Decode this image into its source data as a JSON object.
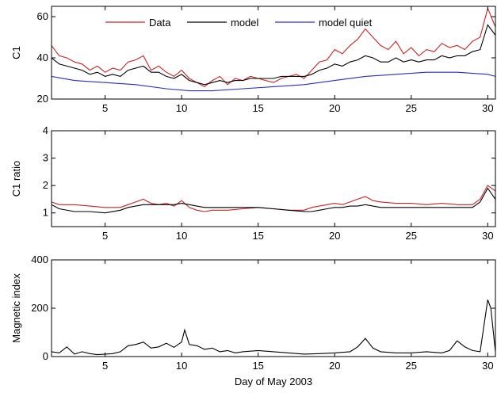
{
  "chart_data": [
    {
      "type": "line",
      "ylabel": "C1",
      "xlim": [
        1.5,
        30.5
      ],
      "ylim": [
        20,
        65
      ],
      "xticks": [
        5,
        10,
        15,
        20,
        25,
        30
      ],
      "yticks": [
        20,
        40,
        60
      ],
      "legend": {
        "position": "top",
        "entries": [
          "Data",
          "model",
          "model quiet"
        ]
      },
      "series": [
        {
          "name": "Data",
          "color": "#cc2222",
          "x": [
            1.5,
            2,
            2.5,
            3,
            3.5,
            4,
            4.5,
            5,
            5.5,
            6,
            6.5,
            7,
            7.5,
            8,
            8.5,
            9,
            9.5,
            10,
            10.5,
            11,
            11.5,
            12,
            12.5,
            13,
            13.5,
            14,
            14.5,
            15,
            15.5,
            16,
            16.5,
            17,
            17.5,
            18,
            18.5,
            19,
            19.5,
            20,
            20.5,
            21,
            21.5,
            22,
            22.5,
            23,
            23.5,
            24,
            24.5,
            25,
            25.5,
            26,
            26.5,
            27,
            27.5,
            28,
            28.5,
            29,
            29.5,
            30,
            30.5
          ],
          "y": [
            46,
            41,
            40,
            38,
            37,
            34,
            36,
            33,
            35,
            34,
            38,
            39,
            41,
            34,
            36,
            33,
            31,
            34,
            30,
            28,
            26,
            29,
            31,
            27,
            30,
            29,
            31,
            30,
            29,
            28,
            30,
            31,
            32,
            30,
            34,
            38,
            39,
            44,
            42,
            46,
            49,
            54,
            50,
            46,
            44,
            48,
            42,
            45,
            41,
            44,
            43,
            47,
            45,
            46,
            44,
            48,
            50,
            64,
            55
          ]
        },
        {
          "name": "model",
          "color": "#000000",
          "x": [
            1.5,
            2,
            2.5,
            3,
            3.5,
            4,
            4.5,
            5,
            5.5,
            6,
            6.5,
            7,
            7.5,
            8,
            8.5,
            9,
            9.5,
            10,
            10.5,
            11,
            11.5,
            12,
            12.5,
            13,
            13.5,
            14,
            14.5,
            15,
            15.5,
            16,
            16.5,
            17,
            17.5,
            18,
            18.5,
            19,
            19.5,
            20,
            20.5,
            21,
            21.5,
            22,
            22.5,
            23,
            23.5,
            24,
            24.5,
            25,
            25.5,
            26,
            26.5,
            27,
            27.5,
            28,
            28.5,
            29,
            29.5,
            30,
            30.5
          ],
          "y": [
            40,
            37,
            36,
            35,
            34,
            32,
            33,
            31,
            32,
            31,
            34,
            35,
            36,
            33,
            33,
            31,
            30,
            32,
            29,
            28,
            27,
            28,
            29,
            28,
            29,
            29,
            30,
            30,
            30,
            30,
            31,
            31,
            31,
            31,
            32,
            34,
            35,
            37,
            36,
            38,
            39,
            41,
            40,
            38,
            38,
            40,
            38,
            39,
            38,
            39,
            39,
            41,
            40,
            41,
            41,
            43,
            44,
            56,
            51
          ]
        },
        {
          "name": "model quiet",
          "color": "#2a2acc",
          "x": [
            1.5,
            3,
            5,
            7,
            9,
            10.5,
            12,
            14,
            16,
            18,
            20,
            22,
            24,
            26,
            28,
            30,
            30.5
          ],
          "y": [
            31,
            29,
            28,
            27,
            25,
            24,
            24,
            25,
            26,
            27,
            29,
            31,
            32,
            33,
            33,
            32,
            31
          ]
        }
      ]
    },
    {
      "type": "line",
      "ylabel": "C1 ratio",
      "xlim": [
        1.5,
        30.5
      ],
      "ylim": [
        0.5,
        4
      ],
      "xticks": [
        5,
        10,
        15,
        20,
        25,
        30
      ],
      "yticks": [
        1,
        2,
        3,
        4
      ],
      "series": [
        {
          "name": "Data",
          "color": "#cc2222",
          "x": [
            1.5,
            2,
            3,
            4,
            5,
            6,
            6.5,
            7,
            7.5,
            8,
            8.5,
            9,
            9.5,
            10,
            10.5,
            11,
            11.5,
            12,
            13,
            14,
            15,
            16,
            17,
            18,
            18.5,
            19,
            19.5,
            20,
            20.5,
            21,
            21.5,
            22,
            22.5,
            23,
            24,
            25,
            26,
            27,
            28,
            29,
            29.5,
            30,
            30.5
          ],
          "y": [
            1.4,
            1.3,
            1.3,
            1.25,
            1.2,
            1.2,
            1.3,
            1.4,
            1.5,
            1.35,
            1.3,
            1.35,
            1.25,
            1.45,
            1.2,
            1.1,
            1.05,
            1.1,
            1.1,
            1.15,
            1.2,
            1.15,
            1.1,
            1.1,
            1.2,
            1.25,
            1.3,
            1.35,
            1.3,
            1.4,
            1.5,
            1.6,
            1.45,
            1.4,
            1.35,
            1.35,
            1.3,
            1.35,
            1.3,
            1.3,
            1.5,
            2.0,
            1.8
          ]
        },
        {
          "name": "model",
          "color": "#000000",
          "x": [
            1.5,
            2,
            3,
            4,
            5,
            6,
            6.5,
            7,
            7.5,
            8,
            8.5,
            9,
            9.5,
            10,
            10.5,
            11,
            11.5,
            12,
            13,
            14,
            15,
            16,
            17,
            18,
            18.5,
            19,
            19.5,
            20,
            20.5,
            21,
            21.5,
            22,
            22.5,
            23,
            24,
            25,
            26,
            27,
            28,
            29,
            29.5,
            30,
            30.5
          ],
          "y": [
            1.3,
            1.15,
            1.05,
            1.05,
            1.0,
            1.1,
            1.2,
            1.25,
            1.3,
            1.3,
            1.3,
            1.3,
            1.3,
            1.35,
            1.3,
            1.25,
            1.2,
            1.2,
            1.2,
            1.2,
            1.2,
            1.15,
            1.1,
            1.05,
            1.05,
            1.1,
            1.15,
            1.2,
            1.2,
            1.25,
            1.25,
            1.3,
            1.25,
            1.2,
            1.2,
            1.2,
            1.2,
            1.2,
            1.2,
            1.2,
            1.4,
            1.9,
            1.5
          ]
        }
      ]
    },
    {
      "type": "line",
      "ylabel": "Magnetic index",
      "xlabel": "Day of May 2003",
      "xlim": [
        1.5,
        30.5
      ],
      "ylim": [
        0,
        400
      ],
      "xticks": [
        5,
        10,
        15,
        20,
        25,
        30
      ],
      "yticks": [
        0,
        200,
        400
      ],
      "series": [
        {
          "name": "",
          "color": "#000000",
          "x": [
            1.5,
            2,
            2.5,
            3,
            3.5,
            4,
            4.5,
            5,
            5.5,
            6,
            6.5,
            7,
            7.5,
            8,
            8.5,
            9,
            9.5,
            10,
            10.2,
            10.5,
            11,
            11.5,
            12,
            12.5,
            13,
            13.5,
            14,
            15,
            16,
            17,
            18,
            19,
            20,
            21,
            21.5,
            22,
            22.5,
            23,
            24,
            25,
            26,
            27,
            27.5,
            28,
            28.5,
            29,
            29.5,
            29.8,
            30,
            30.2,
            30.5
          ],
          "y": [
            20,
            15,
            40,
            10,
            20,
            12,
            8,
            10,
            12,
            20,
            45,
            50,
            60,
            35,
            40,
            55,
            38,
            60,
            110,
            50,
            45,
            30,
            35,
            20,
            25,
            15,
            20,
            25,
            20,
            15,
            10,
            12,
            15,
            20,
            40,
            75,
            35,
            20,
            15,
            15,
            20,
            15,
            25,
            65,
            40,
            25,
            20,
            150,
            235,
            200,
            20
          ]
        }
      ]
    }
  ]
}
